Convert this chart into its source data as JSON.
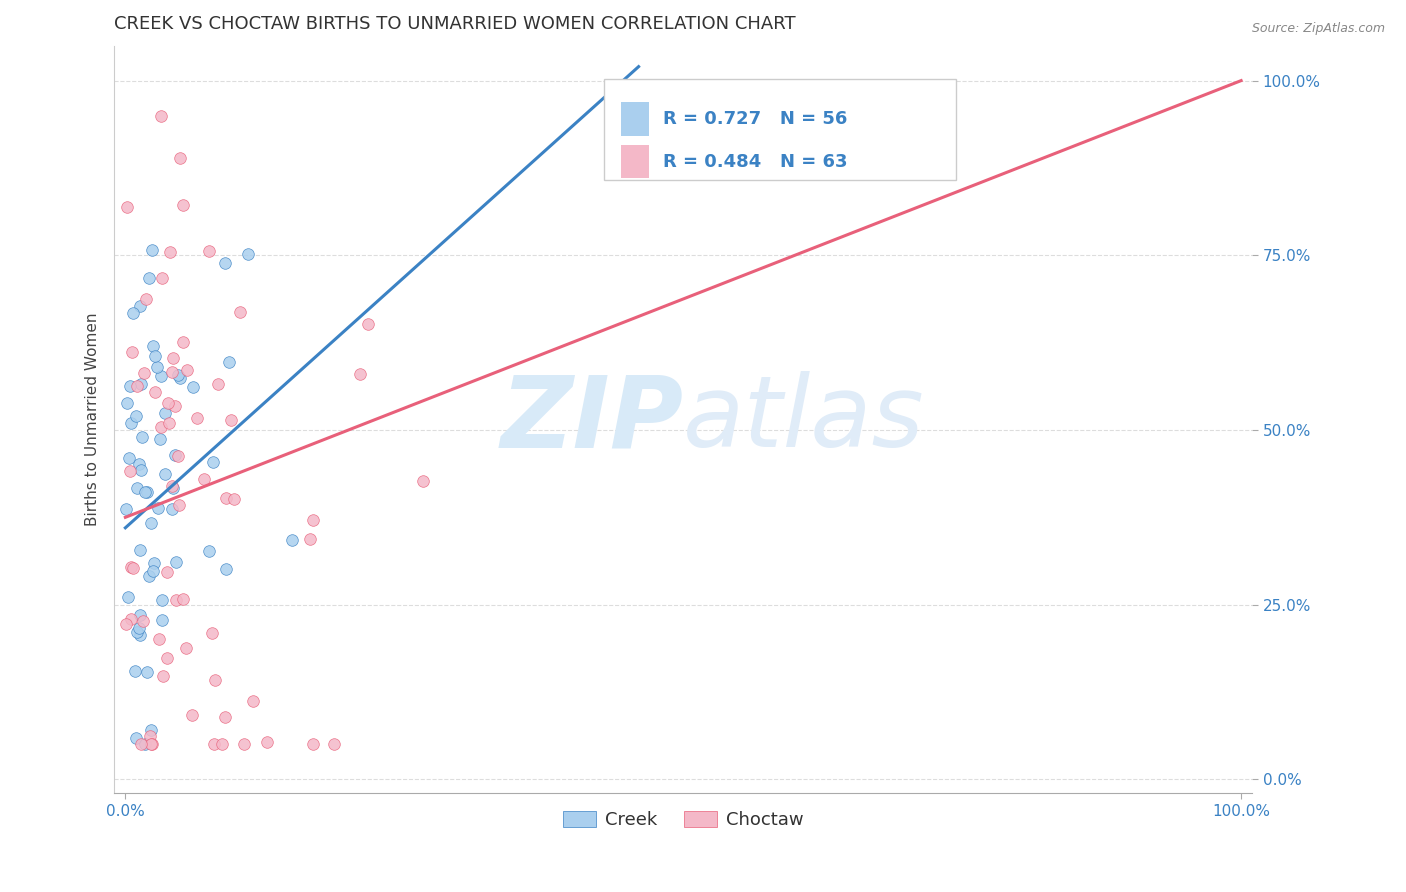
{
  "title": "CREEK VS CHOCTAW BIRTHS TO UNMARRIED WOMEN CORRELATION CHART",
  "source": "Source: ZipAtlas.com",
  "ylabel": "Births to Unmarried Women",
  "ytick_labels": [
    "0.0%",
    "25.0%",
    "50.0%",
    "75.0%",
    "100.0%"
  ],
  "ytick_values": [
    0.0,
    0.25,
    0.5,
    0.75,
    1.0
  ],
  "xtick_labels": [
    "0.0%",
    "100.0%"
  ],
  "xtick_values": [
    0.0,
    1.0
  ],
  "xlim": [
    -0.01,
    1.01
  ],
  "ylim": [
    -0.02,
    1.05
  ],
  "creek_color": "#aacfee",
  "choctaw_color": "#f4b8c8",
  "creek_line_color": "#3b82c4",
  "choctaw_line_color": "#e8607a",
  "tick_color": "#3b82c4",
  "watermark_color": "#d8eaf8",
  "creek_R": 0.727,
  "creek_N": 56,
  "choctaw_R": 0.484,
  "choctaw_N": 63,
  "creek_line_x0": 0.0,
  "creek_line_y0": 0.36,
  "creek_line_x1": 0.46,
  "creek_line_y1": 1.02,
  "choctaw_line_x0": 0.0,
  "choctaw_line_y0": 0.375,
  "choctaw_line_x1": 1.0,
  "choctaw_line_y1": 1.0,
  "background_color": "#ffffff",
  "grid_color": "#dddddd",
  "title_fontsize": 13,
  "axis_label_fontsize": 11,
  "tick_fontsize": 11,
  "legend_fontsize": 13
}
